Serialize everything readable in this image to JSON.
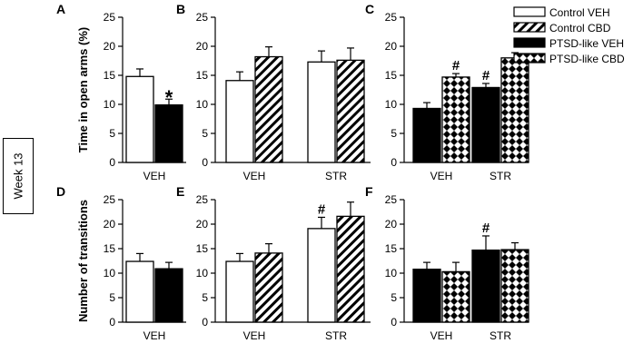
{
  "week_label": "Week 13",
  "legend": [
    {
      "label": "Control VEH",
      "fill": "white"
    },
    {
      "label": "Control CBD",
      "fill": "hatch"
    },
    {
      "label": "PTSD-like VEH",
      "fill": "black"
    },
    {
      "label": "PTSD-like CBD",
      "fill": "diamond"
    }
  ],
  "chart_data": [
    {
      "panel": "A",
      "type": "bar",
      "ylabel": "Time in open arms (%)",
      "ylim": [
        0,
        25
      ],
      "yticks": [
        0,
        5,
        10,
        15,
        20,
        25
      ],
      "groups": [
        "VEH"
      ],
      "bars": [
        {
          "group": 0,
          "series": "Control VEH",
          "fill": "white",
          "value": 14.8,
          "err": 1.3
        },
        {
          "group": 0,
          "series": "PTSD-like VEH",
          "fill": "black",
          "value": 9.9,
          "err": 1.0,
          "mark": "*"
        }
      ]
    },
    {
      "panel": "B",
      "type": "bar",
      "ylabel": "",
      "ylim": [
        0,
        25
      ],
      "yticks": [
        0,
        5,
        10,
        15,
        20,
        25
      ],
      "groups": [
        "VEH",
        "STR"
      ],
      "bars": [
        {
          "group": 0,
          "series": "Control VEH",
          "fill": "white",
          "value": 14.1,
          "err": 1.5
        },
        {
          "group": 0,
          "series": "Control CBD",
          "fill": "hatch",
          "value": 18.2,
          "err": 1.7
        },
        {
          "group": 1,
          "series": "Control VEH",
          "fill": "white",
          "value": 17.3,
          "err": 1.9
        },
        {
          "group": 1,
          "series": "Control CBD",
          "fill": "hatch",
          "value": 17.6,
          "err": 2.1
        }
      ]
    },
    {
      "panel": "C",
      "type": "bar",
      "ylabel": "",
      "ylim": [
        0,
        25
      ],
      "yticks": [
        0,
        5,
        10,
        15,
        20,
        25
      ],
      "groups": [
        "VEH",
        "STR"
      ],
      "bars": [
        {
          "group": 0,
          "series": "PTSD-like VEH",
          "fill": "black",
          "value": 9.3,
          "err": 1.0
        },
        {
          "group": 0,
          "series": "PTSD-like CBD",
          "fill": "diamond",
          "value": 14.7,
          "err": 0.6,
          "mark": "#"
        },
        {
          "group": 1,
          "series": "PTSD-like VEH",
          "fill": "black",
          "value": 12.9,
          "err": 0.7,
          "mark": "#"
        },
        {
          "group": 1,
          "series": "PTSD-like CBD",
          "fill": "diamond",
          "value": 18.0,
          "err": 0.9
        }
      ]
    },
    {
      "panel": "D",
      "type": "bar",
      "ylabel": "Number of transitions",
      "ylim": [
        0,
        25
      ],
      "yticks": [
        0,
        5,
        10,
        15,
        20,
        25
      ],
      "groups": [
        "VEH"
      ],
      "bars": [
        {
          "group": 0,
          "series": "Control VEH",
          "fill": "white",
          "value": 12.4,
          "err": 1.6
        },
        {
          "group": 0,
          "series": "PTSD-like VEH",
          "fill": "black",
          "value": 10.9,
          "err": 1.3
        }
      ]
    },
    {
      "panel": "E",
      "type": "bar",
      "ylabel": "",
      "ylim": [
        0,
        25
      ],
      "yticks": [
        0,
        5,
        10,
        15,
        20,
        25
      ],
      "groups": [
        "VEH",
        "STR"
      ],
      "bars": [
        {
          "group": 0,
          "series": "Control VEH",
          "fill": "white",
          "value": 12.4,
          "err": 1.6
        },
        {
          "group": 0,
          "series": "Control CBD",
          "fill": "hatch",
          "value": 14.1,
          "err": 1.9
        },
        {
          "group": 1,
          "series": "Control VEH",
          "fill": "white",
          "value": 19.1,
          "err": 2.3,
          "mark": "#"
        },
        {
          "group": 1,
          "series": "Control CBD",
          "fill": "hatch",
          "value": 21.6,
          "err": 2.9
        }
      ]
    },
    {
      "panel": "F",
      "type": "bar",
      "ylabel": "",
      "ylim": [
        0,
        25
      ],
      "yticks": [
        0,
        5,
        10,
        15,
        20,
        25
      ],
      "groups": [
        "VEH",
        "STR"
      ],
      "bars": [
        {
          "group": 0,
          "series": "PTSD-like VEH",
          "fill": "black",
          "value": 10.8,
          "err": 1.4
        },
        {
          "group": 0,
          "series": "PTSD-like CBD",
          "fill": "diamond",
          "value": 10.3,
          "err": 1.9
        },
        {
          "group": 1,
          "series": "PTSD-like VEH",
          "fill": "black",
          "value": 14.7,
          "err": 2.9,
          "mark": "#"
        },
        {
          "group": 1,
          "series": "PTSD-like CBD",
          "fill": "diamond",
          "value": 14.8,
          "err": 1.4
        }
      ]
    }
  ]
}
